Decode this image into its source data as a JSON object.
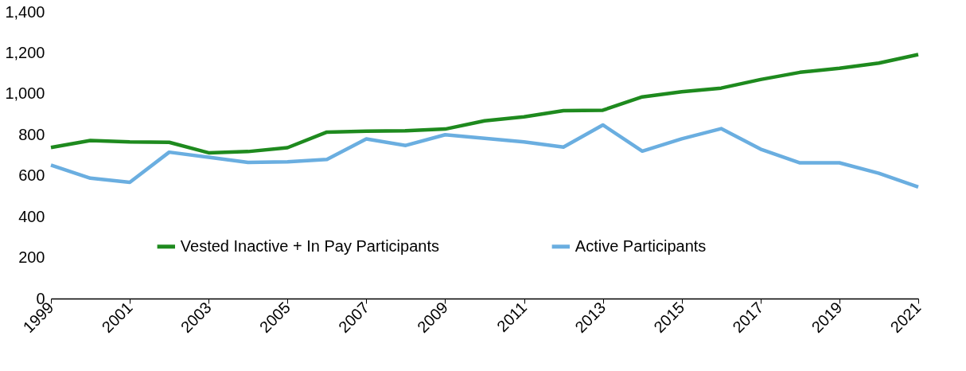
{
  "chart_data": {
    "type": "line",
    "x": [
      1999,
      2000,
      2001,
      2002,
      2003,
      2004,
      2005,
      2006,
      2007,
      2008,
      2009,
      2010,
      2011,
      2012,
      2013,
      2014,
      2015,
      2016,
      2017,
      2018,
      2019,
      2020,
      2021
    ],
    "series": [
      {
        "name": "Vested Inactive + In Pay Participants",
        "color": "#1e8a1e",
        "values": [
          738,
          772,
          765,
          763,
          712,
          718,
          737,
          813,
          818,
          820,
          828,
          868,
          888,
          918,
          920,
          985,
          1010,
          1028,
          1070,
          1105,
          1125,
          1150,
          1192
        ]
      },
      {
        "name": "Active Participants",
        "color": "#6aaee0",
        "values": [
          652,
          588,
          568,
          715,
          690,
          665,
          668,
          680,
          780,
          748,
          800,
          783,
          765,
          740,
          848,
          720,
          780,
          830,
          730,
          663,
          663,
          612,
          545
        ]
      }
    ],
    "xlim": [
      1999,
      2021
    ],
    "xticks": [
      1999,
      2001,
      2003,
      2005,
      2007,
      2009,
      2011,
      2013,
      2015,
      2017,
      2019,
      2021
    ],
    "ylim": [
      0,
      1400
    ],
    "yticks": [
      0,
      200,
      400,
      600,
      800,
      {
        "value": 1000,
        "label": "1,000"
      },
      {
        "value": 1200,
        "label": "1,200"
      },
      {
        "value": 1400,
        "label": "1,400"
      }
    ],
    "grid": false,
    "legend": "bottom",
    "marker": "none",
    "line_style": "solid"
  }
}
